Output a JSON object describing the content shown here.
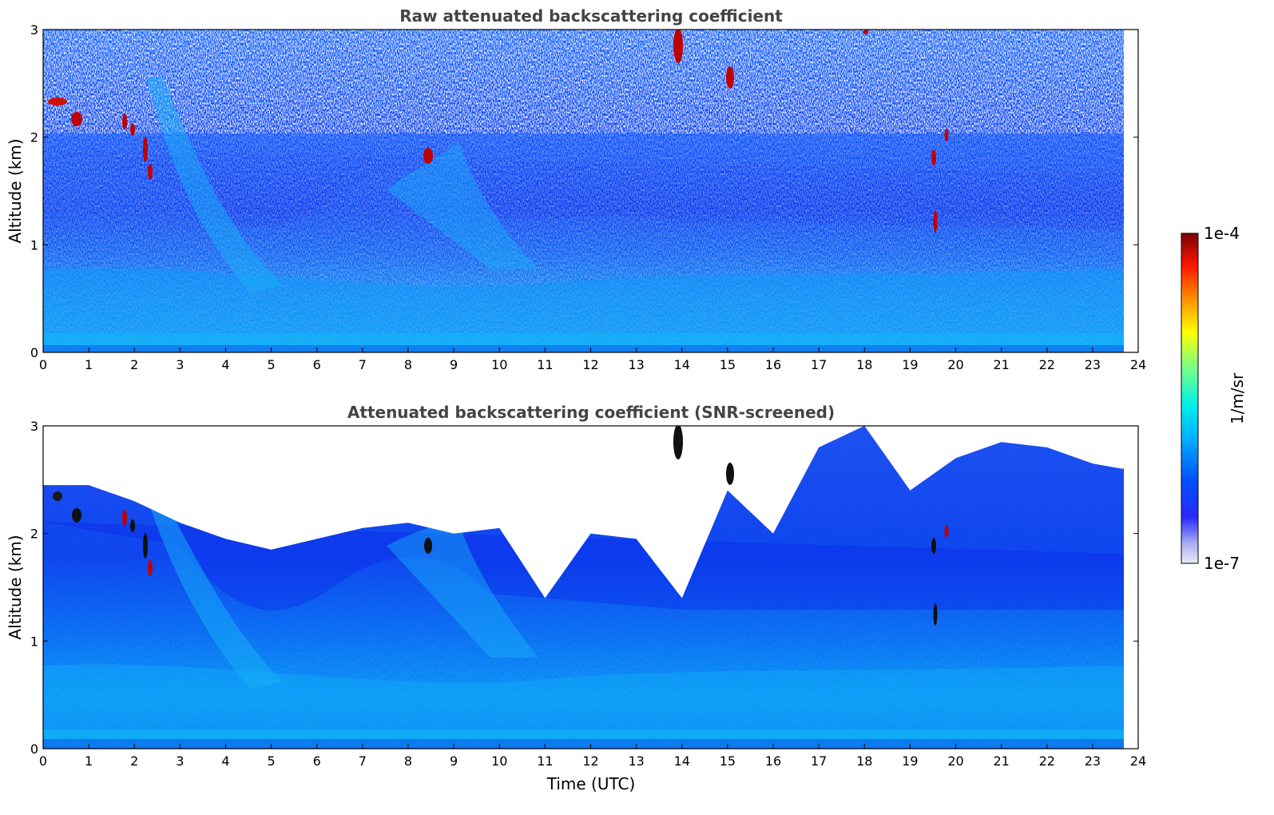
{
  "colorbar": {
    "label": "1/m/sr",
    "max_label": "1e-4",
    "min_label": "1e-7",
    "range": [
      1e-07,
      0.0001
    ],
    "scale": "log",
    "colormap": [
      "#d8dcf4",
      "#a8aef0",
      "#3030ff",
      "#0000ff",
      "#0060ff",
      "#00b8ff",
      "#00ffe0",
      "#80ff80",
      "#ffff00",
      "#ff9000",
      "#ff2000",
      "#c00000",
      "#800000"
    ]
  },
  "chart_data": [
    {
      "type": "heatmap",
      "title": "Raw attenuated backscattering coefficient",
      "xlabel": "",
      "ylabel": "Altitude (km)",
      "xlim": [
        0,
        24
      ],
      "ylim": [
        0,
        3
      ],
      "x_ticks": [
        "0",
        "1",
        "2",
        "3",
        "4",
        "5",
        "6",
        "7",
        "8",
        "9",
        "10",
        "11",
        "12",
        "13",
        "14",
        "15",
        "16",
        "17",
        "18",
        "19",
        "20",
        "21",
        "22",
        "23",
        "24"
      ],
      "y_ticks": [
        "0",
        "1",
        "2",
        "3"
      ],
      "data_extent_x": [
        0,
        23.67
      ],
      "grid": false
    },
    {
      "type": "heatmap",
      "title": "Attenuated backscattering coefficient (SNR-screened)",
      "xlabel": "Time (UTC)",
      "ylabel": "Altitude (km)",
      "xlim": [
        0,
        24
      ],
      "ylim": [
        0,
        3
      ],
      "x_ticks": [
        "0",
        "1",
        "2",
        "3",
        "4",
        "5",
        "6",
        "7",
        "8",
        "9",
        "10",
        "11",
        "12",
        "13",
        "14",
        "15",
        "16",
        "17",
        "18",
        "19",
        "20",
        "21",
        "22",
        "23",
        "24"
      ],
      "y_ticks": [
        "0",
        "1",
        "2",
        "3"
      ],
      "data_extent_x": [
        0,
        23.67
      ],
      "screened_top_km": [
        [
          0,
          2.45
        ],
        [
          1,
          2.45
        ],
        [
          2,
          2.3
        ],
        [
          3,
          2.1
        ],
        [
          4,
          1.95
        ],
        [
          5,
          1.85
        ],
        [
          6,
          1.95
        ],
        [
          7,
          2.05
        ],
        [
          8,
          2.1
        ],
        [
          9,
          2.0
        ],
        [
          10,
          2.05
        ],
        [
          11,
          1.4
        ],
        [
          12,
          2.0
        ],
        [
          13,
          1.95
        ],
        [
          14,
          1.4
        ],
        [
          15,
          2.4
        ],
        [
          16,
          2.0
        ],
        [
          17,
          2.8
        ],
        [
          18,
          3.0
        ],
        [
          19,
          2.4
        ],
        [
          20,
          2.7
        ],
        [
          21,
          2.85
        ],
        [
          22,
          2.8
        ],
        [
          23,
          2.65
        ],
        [
          23.67,
          2.6
        ]
      ],
      "grid": false
    }
  ]
}
